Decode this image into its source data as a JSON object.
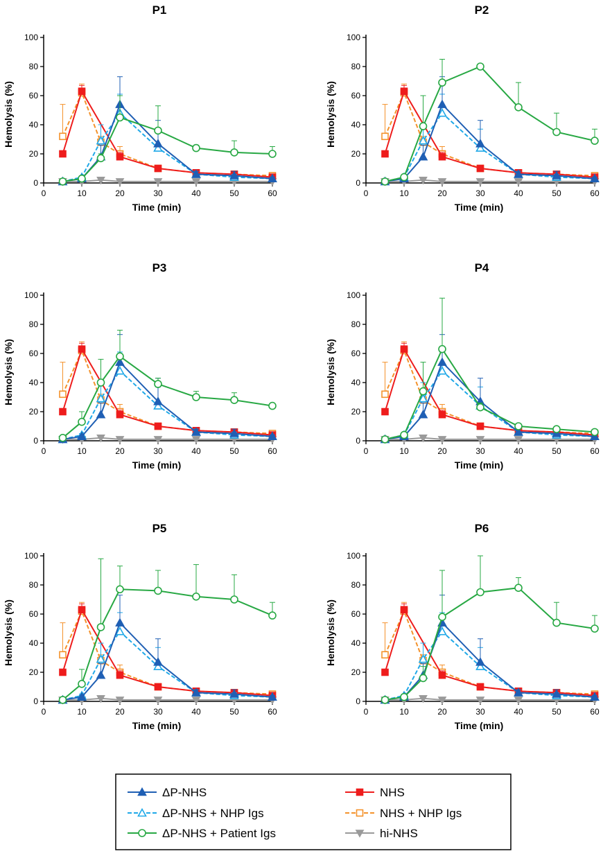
{
  "chart_data": {
    "type": "line",
    "xlabel": "Time (min)",
    "ylabel": "Hemolysis (%)",
    "xlim": [
      0,
      60
    ],
    "ylim": [
      0,
      100
    ],
    "x": [
      5,
      10,
      15,
      20,
      30,
      40,
      50,
      60
    ],
    "xticks": [
      "0",
      "10",
      "20",
      "30",
      "40",
      "50",
      "60"
    ],
    "yticks": [
      "0",
      "20",
      "40",
      "60",
      "80",
      "100"
    ],
    "legend": [
      {
        "name": "ΔP-NHS",
        "color": "#1f5fb4",
        "marker": "triangle-up",
        "dash": false,
        "filled": true
      },
      {
        "name": "NHS",
        "color": "#ee1c1c",
        "marker": "square",
        "dash": false,
        "filled": true
      },
      {
        "name": "ΔP-NHS + NHP Igs",
        "color": "#1ea8e8",
        "marker": "triangle-up",
        "dash": true,
        "filled": false
      },
      {
        "name": "NHS + NHP Igs",
        "color": "#f4922b",
        "marker": "square",
        "dash": true,
        "filled": false
      },
      {
        "name": "ΔP-NHS + Patient Igs",
        "color": "#27a843",
        "marker": "circle",
        "dash": false,
        "filled": false
      },
      {
        "name": "hi-NHS",
        "color": "#9a9a9a",
        "marker": "triangle-down",
        "dash": false,
        "filled": true
      }
    ],
    "shared_series": [
      {
        "name": "ΔP-NHS",
        "values": [
          1,
          3,
          18,
          54,
          27,
          6,
          5,
          3
        ],
        "errors": [
          0,
          1,
          8,
          19,
          16,
          2,
          3,
          1
        ]
      },
      {
        "name": "ΔP-NHS + NHP Igs",
        "values": [
          1,
          4,
          29,
          48,
          24,
          6,
          4,
          3
        ],
        "errors": [
          0,
          1,
          11,
          13,
          13,
          2,
          2,
          1
        ]
      },
      {
        "name": "NHS",
        "values": [
          20,
          63,
          null,
          18,
          10,
          7,
          6,
          4
        ],
        "errors": [
          0,
          4,
          0,
          3,
          2,
          1,
          1,
          1
        ]
      },
      {
        "name": "NHS + NHP Igs",
        "values": [
          32,
          62,
          28,
          20,
          10,
          7,
          6,
          5
        ],
        "errors": [
          22,
          6,
          4,
          5,
          2,
          1,
          1,
          1
        ]
      },
      {
        "name": "hi-NHS",
        "values": [
          1,
          1,
          2,
          1,
          1,
          1,
          1,
          1
        ],
        "errors": [
          0,
          0,
          0,
          0,
          0,
          0,
          0,
          0
        ]
      }
    ],
    "panels": [
      {
        "title": "P1",
        "patient_igs": {
          "values": [
            1,
            3,
            17,
            45,
            36,
            24,
            21,
            20
          ],
          "errors": [
            0,
            1,
            3,
            15,
            17,
            2,
            8,
            5
          ]
        }
      },
      {
        "title": "P2",
        "patient_igs": {
          "values": [
            1,
            4,
            39,
            69,
            80,
            52,
            35,
            29
          ],
          "errors": [
            0,
            1,
            21,
            16,
            0,
            17,
            13,
            8
          ]
        }
      },
      {
        "title": "P3",
        "patient_igs": {
          "values": [
            2,
            13,
            40,
            58,
            39,
            30,
            28,
            24
          ],
          "errors": [
            0,
            7,
            16,
            18,
            4,
            4,
            5,
            0
          ]
        }
      },
      {
        "title": "P4",
        "patient_igs": {
          "values": [
            1,
            4,
            34,
            63,
            23,
            10,
            8,
            6
          ],
          "errors": [
            0,
            1,
            20,
            35,
            3,
            1,
            1,
            1
          ]
        }
      },
      {
        "title": "P5",
        "patient_igs": {
          "values": [
            1,
            12,
            51,
            77,
            76,
            72,
            70,
            59
          ],
          "errors": [
            0,
            10,
            47,
            16,
            14,
            22,
            17,
            9
          ]
        }
      },
      {
        "title": "P6",
        "patient_igs": {
          "values": [
            1,
            3,
            16,
            58,
            75,
            78,
            54,
            50
          ],
          "errors": [
            0,
            1,
            8,
            32,
            25,
            7,
            14,
            9
          ]
        }
      }
    ]
  }
}
